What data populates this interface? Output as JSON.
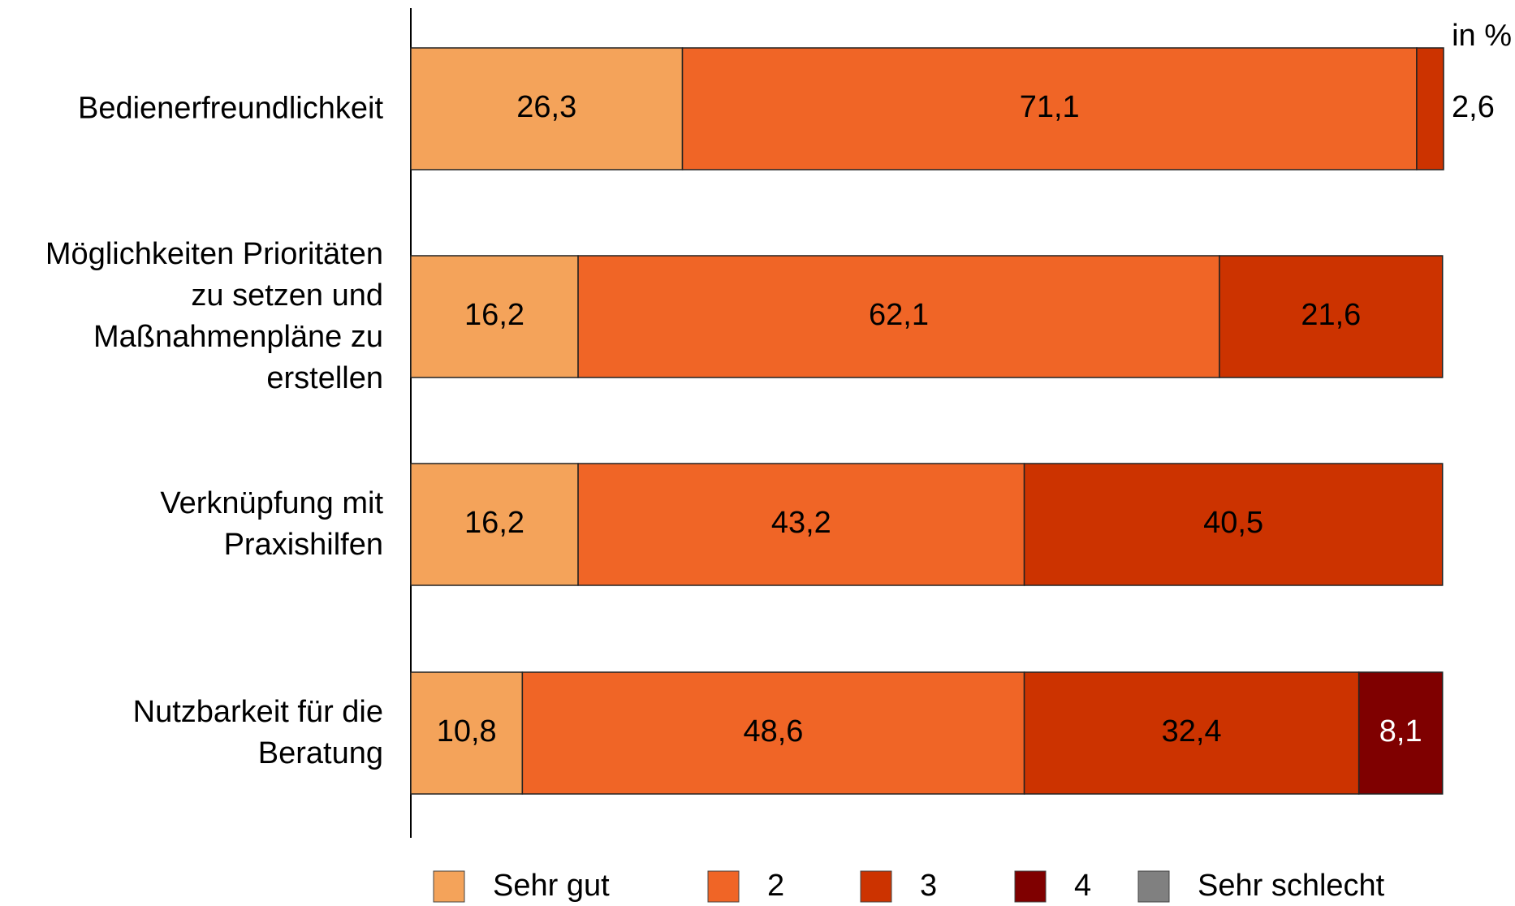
{
  "chart_data": {
    "type": "stacked_barh",
    "annotation": "in %",
    "categories": [
      "Bedienerfreundlichkeit",
      "Möglichkeiten Prioritäten\nzu setzen und\nMaßnahmenpläne zu\nerstellen",
      "Verknüpfung mit\nPraxishilfen",
      "Nutzbarkeit für die\nBeratung"
    ],
    "series": [
      {
        "name": "Sehr gut",
        "color": "#f4a35a",
        "values": [
          26.3,
          16.2,
          16.2,
          10.8
        ],
        "value_labels": [
          "26,3",
          "16,2",
          "16,2",
          "10,8"
        ]
      },
      {
        "name": "2",
        "color": "#f06526",
        "values": [
          71.1,
          62.1,
          43.2,
          48.6
        ],
        "value_labels": [
          "71,1",
          "62,1",
          "43,2",
          "48,6"
        ]
      },
      {
        "name": "3",
        "color": "#cc3300",
        "values": [
          2.6,
          21.6,
          40.5,
          32.4
        ],
        "value_labels": [
          "2,6",
          "21,6",
          "40,5",
          "32,4"
        ]
      },
      {
        "name": "4",
        "color": "#7f0000",
        "values": [
          null,
          null,
          null,
          8.1
        ],
        "value_labels": [
          null,
          null,
          null,
          "8,1"
        ]
      },
      {
        "name": "Sehr schlecht",
        "color": "#808080",
        "values": [
          null,
          null,
          null,
          null
        ],
        "value_labels": [
          null,
          null,
          null,
          null
        ]
      }
    ],
    "xlim": [
      0,
      100
    ]
  }
}
